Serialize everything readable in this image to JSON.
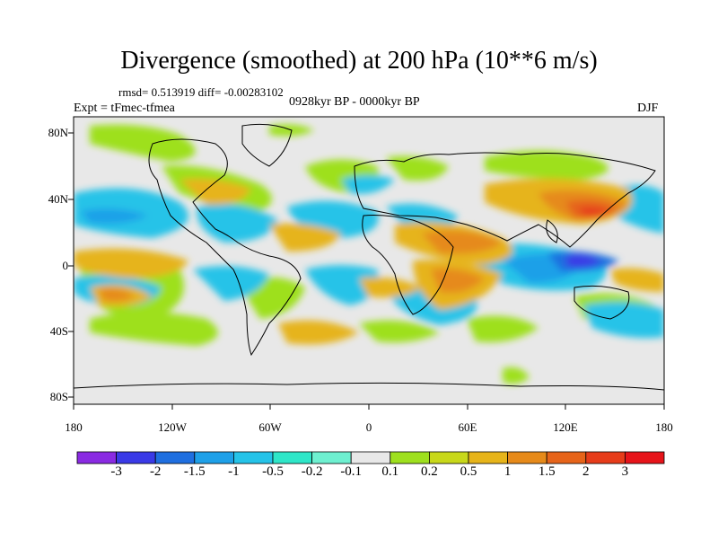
{
  "title": "Divergence (smoothed) at 200 hPa (10**6 m/s)",
  "stats": "rmsd= 0.513919 diff= -0.00283102",
  "period": "0928kyr BP - 0000kyr BP",
  "experiment": "Expt = tFmec-tfmea",
  "season": "DJF",
  "lat_ticks": [
    "80N",
    "40N",
    "0",
    "40S",
    "80S"
  ],
  "lon_ticks": [
    "180",
    "120W",
    "60W",
    "0",
    "60E",
    "120E",
    "180"
  ],
  "colorbar": {
    "labels": [
      "-3",
      "-2",
      "-1.5",
      "-1",
      "-0.5",
      "-0.2",
      "-0.1",
      "0.1",
      "0.2",
      "0.5",
      "1",
      "1.5",
      "2",
      "3"
    ],
    "colors": [
      "#8a2be2",
      "#3a3ae6",
      "#1f6fe0",
      "#1ea0e8",
      "#25c3e8",
      "#2ee6c8",
      "#6ef0d0",
      "#e8e8e8",
      "#9ee01e",
      "#c8d81a",
      "#e6b41a",
      "#e68a1a",
      "#e6641a",
      "#e63c1a",
      "#e6141a"
    ]
  },
  "map_colors": {
    "background": "#e8e8e8",
    "coast": "#000000"
  }
}
